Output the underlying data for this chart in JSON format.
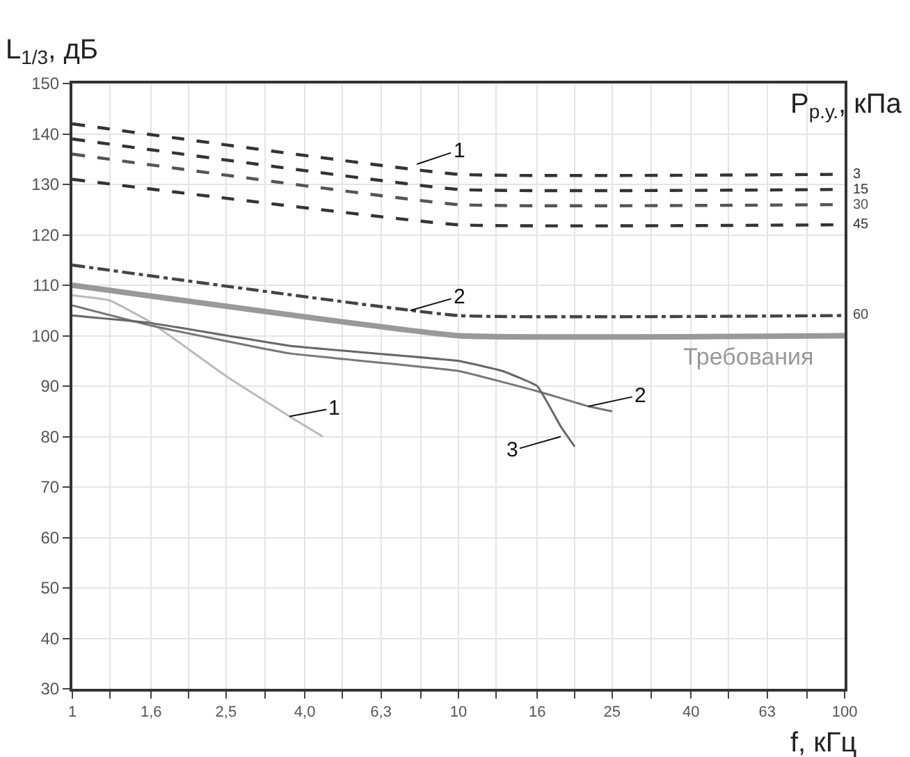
{
  "chart_data": {
    "type": "line",
    "xlabel": "f, кГц",
    "ylabel": "L$_{1/3}$, дБ",
    "legend_title": "P$_{р.у.}$, кПа",
    "log": "x",
    "xlim": [
      1,
      100
    ],
    "ylim": [
      30,
      150
    ],
    "xticks": [
      {
        "value": 1,
        "label": "1"
      },
      {
        "value": 1.25,
        "label": null
      },
      {
        "value": 1.6,
        "label": "1,6"
      },
      {
        "value": 2,
        "label": null
      },
      {
        "value": 2.5,
        "label": "2,5"
      },
      {
        "value": 3.15,
        "label": null
      },
      {
        "value": 4,
        "label": "4,0"
      },
      {
        "value": 5,
        "label": null
      },
      {
        "value": 6.3,
        "label": "6,3"
      },
      {
        "value": 8,
        "label": null
      },
      10,
      {
        "value": 12.5,
        "label": null
      },
      16,
      {
        "value": 20,
        "label": null
      },
      25,
      {
        "value": 31.5,
        "label": null
      },
      40,
      {
        "value": 50,
        "label": null
      },
      63,
      {
        "value": 80,
        "label": null
      },
      100
    ],
    "yticks": [
      30,
      40,
      50,
      60,
      70,
      80,
      90,
      100,
      110,
      120,
      130,
      140,
      150
    ],
    "grid": true,
    "legend": false,
    "series": [
      {
        "name": "3",
        "color": "#333333",
        "line_style": "dashed",
        "x": [
          1,
          10,
          100
        ],
        "values": [
          142,
          132,
          132
        ]
      },
      {
        "name": "15",
        "color": "#333333",
        "line_style": "dashed",
        "x": [
          1,
          10,
          100
        ],
        "values": [
          139,
          129,
          129
        ]
      },
      {
        "name": "30",
        "color": "#555555",
        "line_style": "dashed",
        "x": [
          1,
          10,
          100
        ],
        "values": [
          136,
          126,
          126
        ]
      },
      {
        "name": "45",
        "color": "#333333",
        "line_style": "dashed",
        "x": [
          1,
          10,
          100
        ],
        "values": [
          131,
          122,
          122
        ]
      },
      {
        "name": "60",
        "color": "#444444",
        "line_style": "dashdot",
        "x": [
          1,
          10,
          100
        ],
        "values": [
          114,
          104,
          104
        ]
      },
      {
        "name": "Требования",
        "color": "#999999",
        "line_style": "solid",
        "x": [
          1,
          10,
          100
        ],
        "values": [
          110,
          100,
          100
        ]
      },
      {
        "color": "#bbbbbb",
        "line_style": "solid",
        "x": [
          1,
          1.25,
          1.6,
          2.5,
          3.65,
          4.45
        ],
        "values": [
          108,
          107,
          102.6,
          92,
          84,
          80
        ]
      },
      {
        "color": "#777777",
        "line_style": "solid",
        "x": [
          1,
          1.6,
          3.65,
          10,
          16,
          21.7,
          25
        ],
        "values": [
          106,
          102,
          96.5,
          93,
          89,
          86,
          85
        ]
      },
      {
        "color": "#666666",
        "line_style": "solid",
        "x": [
          1,
          1.6,
          3.65,
          10,
          13,
          16,
          18.4,
          20
        ],
        "values": [
          104,
          102.5,
          98,
          95,
          93,
          90,
          82,
          78
        ]
      }
    ],
    "annotations": [
      {
        "text": "1",
        "x": 7.8,
        "y": 134
      },
      {
        "text": "2",
        "x": 7.5,
        "y": 105
      },
      {
        "text": "1",
        "x": 3.65,
        "y": 84
      },
      {
        "text": "2",
        "x": 21.7,
        "y": 86
      },
      {
        "text": "3",
        "x": 18.4,
        "y": 80
      }
    ]
  }
}
